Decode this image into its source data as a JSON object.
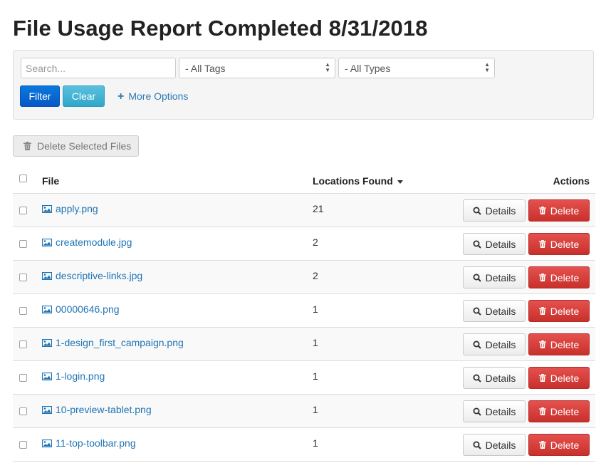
{
  "page": {
    "title": "File Usage Report Completed 8/31/2018"
  },
  "filters": {
    "search_placeholder": "Search...",
    "tags_selected": "- All Tags",
    "types_selected": "- All Types",
    "filter_label": "Filter",
    "clear_label": "Clear",
    "more_options_label": "More Options"
  },
  "toolbar": {
    "delete_selected_label": "Delete Selected Files"
  },
  "table": {
    "headers": {
      "file": "File",
      "locations": "Locations Found",
      "actions": "Actions"
    },
    "details_label": "Details",
    "delete_label": "Delete",
    "rows": [
      {
        "file": "apply.png",
        "locations": "21"
      },
      {
        "file": "createmodule.jpg",
        "locations": "2"
      },
      {
        "file": "descriptive-links.jpg",
        "locations": "2"
      },
      {
        "file": "00000646.png",
        "locations": "1"
      },
      {
        "file": "1-design_first_campaign.png",
        "locations": "1"
      },
      {
        "file": "1-login.png",
        "locations": "1"
      },
      {
        "file": "10-preview-tablet.png",
        "locations": "1"
      },
      {
        "file": "11-top-toolbar.png",
        "locations": "1"
      }
    ]
  },
  "icons": {
    "file_row": "image-icon",
    "details_button": "search-icon",
    "delete_button": "trash-icon",
    "sort_indicator": "caret-down-icon",
    "more_options": "plus-icon"
  },
  "colors": {
    "link": "#1f74b4",
    "primary": "#0658c4",
    "info": "#5bc0de",
    "danger": "#d9534f"
  }
}
